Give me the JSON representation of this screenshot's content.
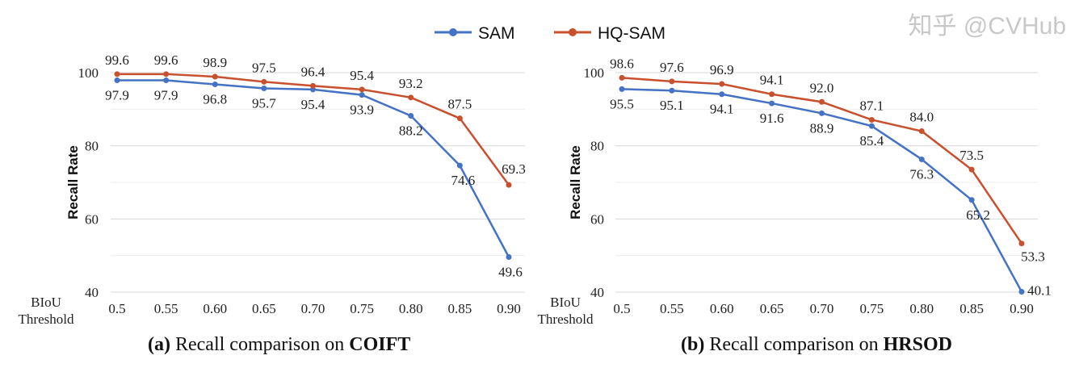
{
  "legend": [
    {
      "name": "SAM",
      "color": "#4472C4"
    },
    {
      "name": "HQ-SAM",
      "color": "#C9502E"
    }
  ],
  "watermark": "知乎 @CVHub",
  "chart_data": [
    {
      "type": "line",
      "caption_prefix": "(a)",
      "caption_text": " Recall comparison on ",
      "caption_bold": "COIFT",
      "ylabel": "Recall Rate",
      "xlabel_line1": "BIoU",
      "xlabel_line2": "Threshold",
      "categories": [
        "0.5",
        "0.55",
        "0.60",
        "0.65",
        "0.70",
        "0.75",
        "0.80",
        "0.85",
        "0.90"
      ],
      "ylim": [
        40,
        100
      ],
      "yticks": [
        "40",
        "60",
        "80",
        "100"
      ],
      "grid": true,
      "series": [
        {
          "name": "SAM",
          "values": [
            97.9,
            97.9,
            96.8,
            95.7,
            95.4,
            93.9,
            88.2,
            74.6,
            49.6
          ]
        },
        {
          "name": "HQ-SAM",
          "values": [
            99.6,
            99.6,
            98.9,
            97.5,
            96.4,
            95.4,
            93.2,
            87.5,
            69.3
          ]
        }
      ]
    },
    {
      "type": "line",
      "caption_prefix": "(b)",
      "caption_text": " Recall comparison on ",
      "caption_bold": "HRSOD",
      "ylabel": "Recall Rate",
      "xlabel_line1": "BIoU",
      "xlabel_line2": "Threshold",
      "categories": [
        "0.5",
        "0.55",
        "0.60",
        "0.65",
        "0.70",
        "0.75",
        "0.80",
        "0.85",
        "0.90"
      ],
      "ylim": [
        40,
        100
      ],
      "yticks": [
        "40",
        "60",
        "80",
        "100"
      ],
      "grid": true,
      "series": [
        {
          "name": "SAM",
          "values": [
            95.5,
            95.1,
            94.1,
            91.6,
            88.9,
            85.4,
            76.3,
            65.2,
            40.1
          ]
        },
        {
          "name": "HQ-SAM",
          "values": [
            98.6,
            97.6,
            96.9,
            94.1,
            92.0,
            87.1,
            84.0,
            73.5,
            53.3
          ]
        }
      ]
    }
  ]
}
